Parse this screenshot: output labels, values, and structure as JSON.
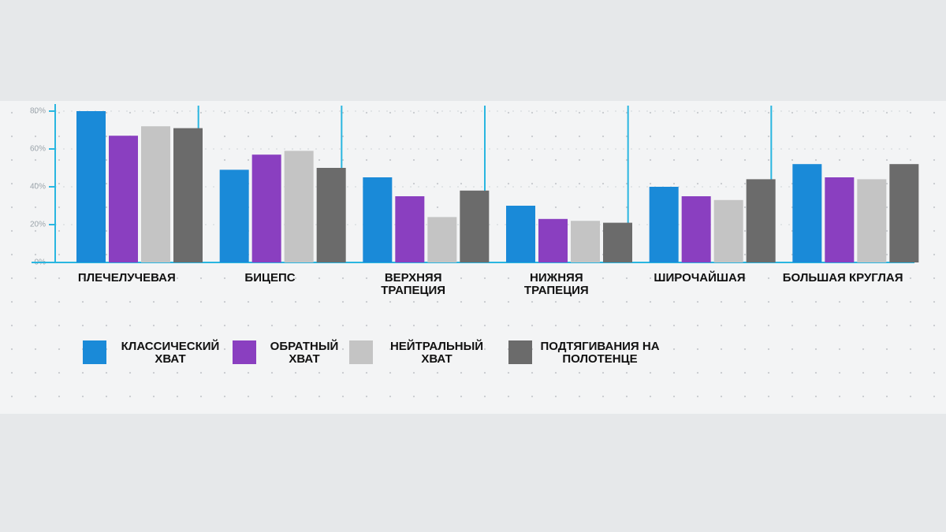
{
  "chart_data": {
    "type": "bar",
    "categories": [
      "ПЛЕЧЕЛУЧЕВАЯ",
      "БИЦЕПС",
      "ВЕРХНЯЯ ТРАПЕЦИЯ",
      "НИЖНЯЯ ТРАПЕЦИЯ",
      "ШИРОЧАЙШАЯ",
      "БОЛЬШАЯ КРУГЛАЯ"
    ],
    "series": [
      {
        "name": "КЛАССИЧЕСКИЙ ХВАТ",
        "color": "#1a8ad8",
        "values": [
          80,
          49,
          45,
          30,
          40,
          52
        ]
      },
      {
        "name": "ОБРАТНЫЙ ХВАТ",
        "color": "#8a3fc0",
        "values": [
          67,
          57,
          35,
          23,
          35,
          45
        ]
      },
      {
        "name": "НЕЙТРАЛЬНЫЙ ХВАТ",
        "color": "#c4c4c4",
        "values": [
          72,
          59,
          24,
          22,
          33,
          44
        ]
      },
      {
        "name": "ПОДТЯГИВАНИЯ НА ПОЛОТЕНЦЕ",
        "color": "#6b6b6b",
        "values": [
          71,
          50,
          38,
          21,
          44,
          52
        ]
      }
    ],
    "ylim": [
      0,
      80
    ],
    "yticks": [
      {
        "value": 0,
        "label": "0%"
      },
      {
        "value": 20,
        "label": "20%"
      },
      {
        "value": 40,
        "label": "40%"
      },
      {
        "value": 60,
        "label": "60%"
      },
      {
        "value": 80,
        "label": "80%"
      }
    ],
    "grid": true
  }
}
